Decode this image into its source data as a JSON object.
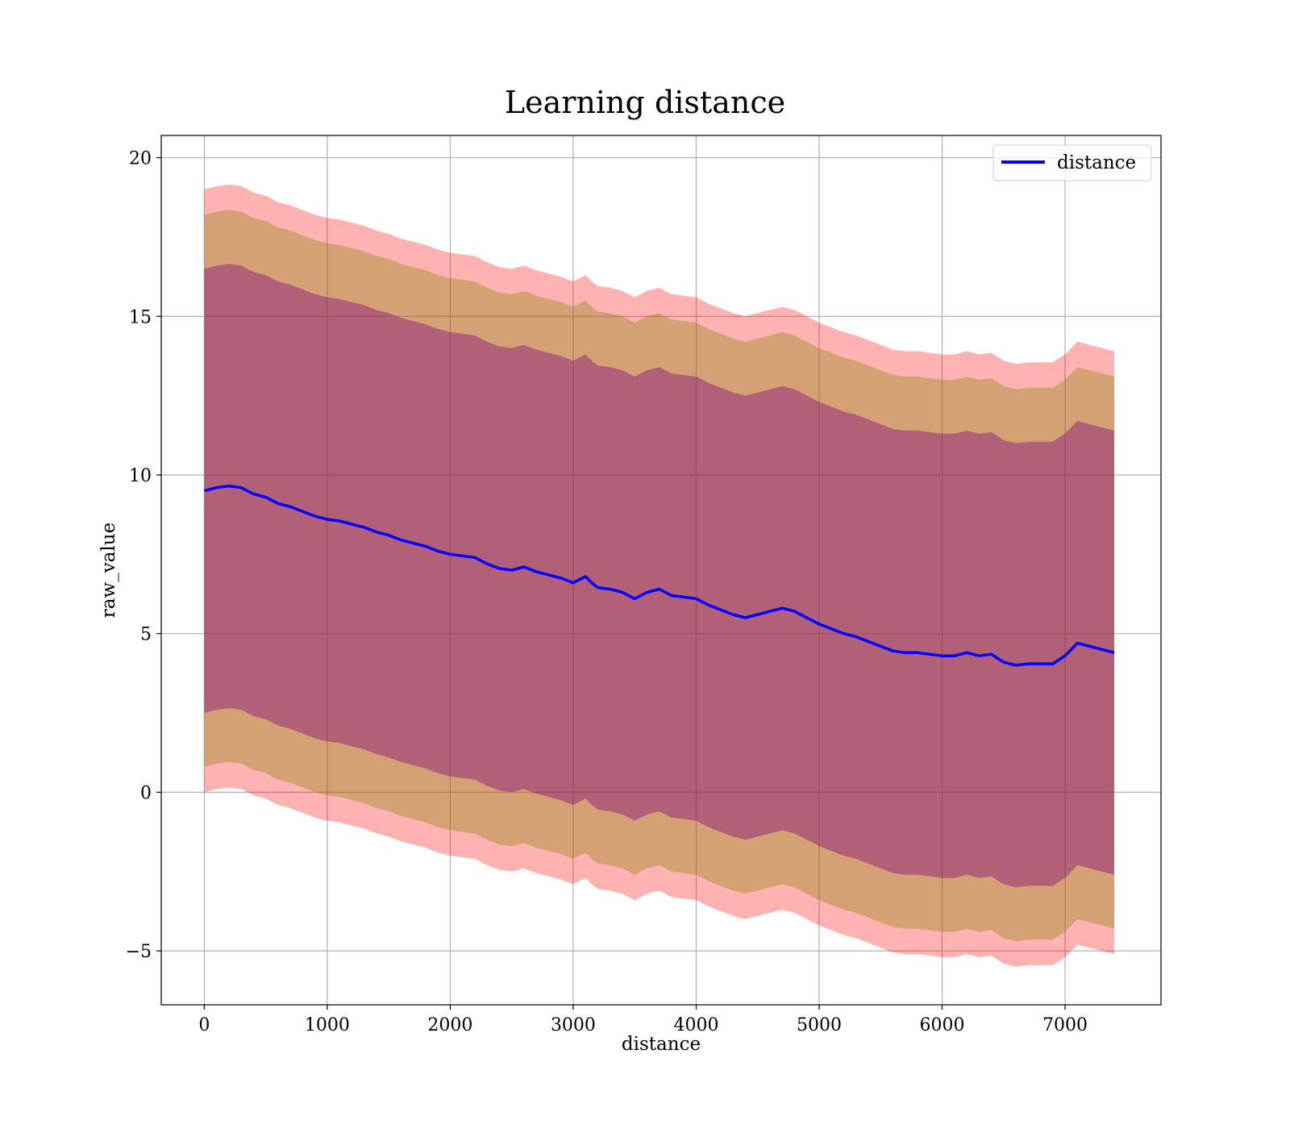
{
  "chart_data": {
    "type": "line",
    "title": "Learning distance",
    "xlabel": "distance",
    "ylabel": "raw_value",
    "xlim": [
      -350,
      7780
    ],
    "ylim": [
      -6.7,
      20.7
    ],
    "xticks": [
      0,
      1000,
      2000,
      3000,
      4000,
      5000,
      6000,
      7000
    ],
    "xtick_labels": [
      "0",
      "1000",
      "2000",
      "3000",
      "4000",
      "5000",
      "6000",
      "7000"
    ],
    "yticks": [
      -5,
      0,
      5,
      10,
      15,
      20
    ],
    "ytick_labels": [
      "−5",
      "0",
      "5",
      "10",
      "15",
      "20"
    ],
    "grid": true,
    "legend": {
      "position": "top-right",
      "entries": [
        "distance"
      ]
    },
    "colors": {
      "line": "#0000ff",
      "band_outer": "#ff0000",
      "band_middle": "#808000",
      "band_inner": "#800080"
    },
    "band_offsets": {
      "inner": 7.0,
      "middle": 8.7,
      "outer": 9.5
    },
    "series": [
      {
        "name": "distance",
        "x": [
          0,
          100,
          200,
          300,
          400,
          500,
          600,
          700,
          800,
          900,
          1000,
          1100,
          1200,
          1300,
          1400,
          1500,
          1600,
          1700,
          1800,
          1900,
          2000,
          2100,
          2200,
          2300,
          2400,
          2500,
          2600,
          2700,
          2800,
          2900,
          3000,
          3100,
          3150,
          3200,
          3300,
          3400,
          3500,
          3600,
          3700,
          3800,
          3900,
          4000,
          4100,
          4200,
          4300,
          4400,
          4500,
          4600,
          4700,
          4800,
          4900,
          5000,
          5100,
          5200,
          5300,
          5400,
          5500,
          5600,
          5700,
          5800,
          5900,
          6000,
          6100,
          6200,
          6300,
          6400,
          6500,
          6600,
          6700,
          6800,
          6900,
          7000,
          7100,
          7200,
          7300,
          7400
        ],
        "y": [
          9.5,
          9.6,
          9.65,
          9.6,
          9.4,
          9.3,
          9.1,
          9.0,
          8.85,
          8.7,
          8.6,
          8.55,
          8.45,
          8.35,
          8.2,
          8.1,
          7.95,
          7.85,
          7.75,
          7.6,
          7.5,
          7.45,
          7.4,
          7.2,
          7.05,
          7.0,
          7.1,
          6.95,
          6.85,
          6.75,
          6.6,
          6.8,
          6.6,
          6.45,
          6.4,
          6.3,
          6.1,
          6.3,
          6.4,
          6.2,
          6.15,
          6.1,
          5.9,
          5.75,
          5.6,
          5.5,
          5.6,
          5.7,
          5.8,
          5.7,
          5.5,
          5.3,
          5.15,
          5.0,
          4.9,
          4.75,
          4.6,
          4.45,
          4.4,
          4.4,
          4.35,
          4.3,
          4.3,
          4.4,
          4.3,
          4.35,
          4.1,
          4.0,
          4.05,
          4.05,
          4.05,
          4.3,
          4.7,
          4.6,
          4.5,
          4.4
        ]
      }
    ]
  }
}
